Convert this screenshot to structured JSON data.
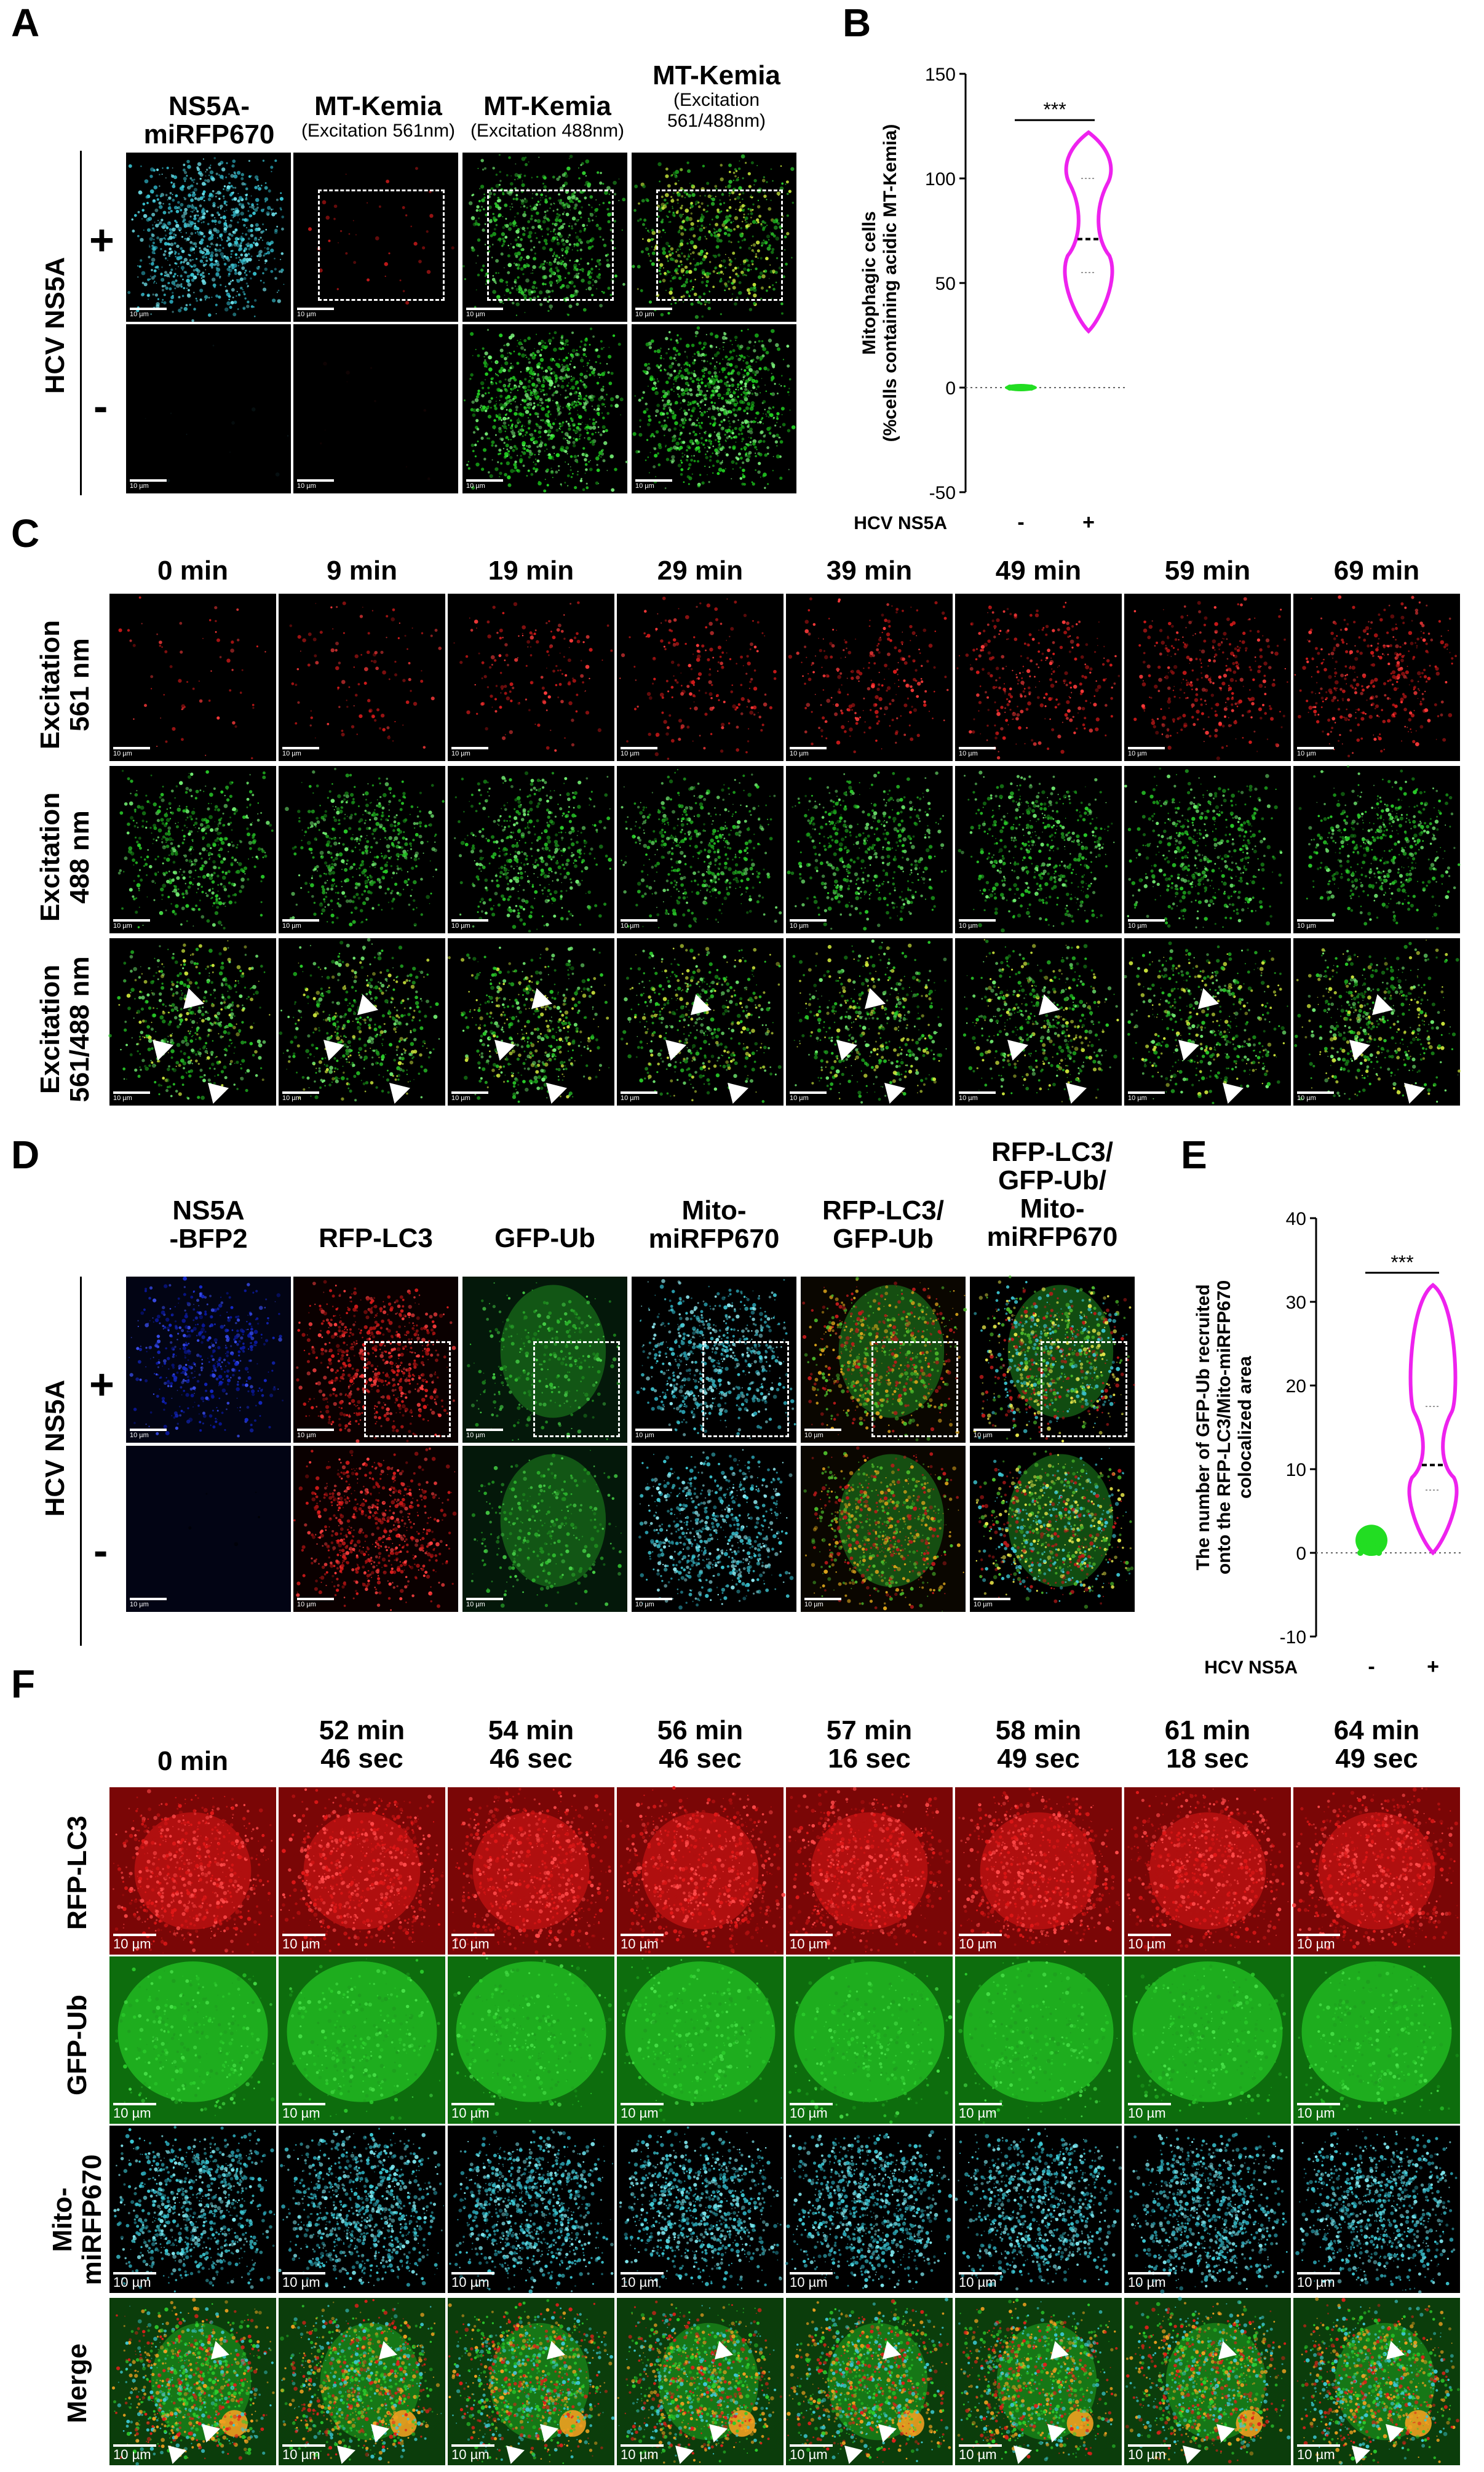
{
  "panels": {
    "A": "A",
    "B": "B",
    "C": "C",
    "D": "D",
    "E": "E",
    "F": "F"
  },
  "A": {
    "cols": [
      {
        "main": "NS5A-\nmiRFP670",
        "sub": ""
      },
      {
        "main": "MT-Kemia",
        "sub": "(Excitation 561nm)"
      },
      {
        "main": "MT-Kemia",
        "sub": "(Excitation 488nm)"
      },
      {
        "main": "MT-Kemia",
        "sub": "(Excitation\n561/488nm)"
      }
    ],
    "row_title": "HCV NS5A",
    "signs": [
      "+",
      "-"
    ],
    "scale": "10 µm"
  },
  "B": {
    "ylabel": "Mitophagic cells\n(%cells containing acidic MT-Kemia)",
    "xtitle": "HCV NS5A",
    "xcats": [
      "-",
      "+"
    ],
    "sig": "***"
  },
  "C": {
    "times": [
      "0 min",
      "9 min",
      "19 min",
      "29 min",
      "39 min",
      "49 min",
      "59 min",
      "69 min"
    ],
    "rows": [
      "Excitation\n561 nm",
      "Excitation\n488 nm",
      "Excitation\n561/488 nm"
    ],
    "scale": "10 µm"
  },
  "D": {
    "cols": [
      "NS5A\n-BFP2",
      "RFP-LC3",
      "GFP-Ub",
      "Mito-\nmiRFP670",
      "RFP-LC3/\nGFP-Ub",
      "RFP-LC3/\nGFP-Ub/\nMito-\nmiRFP670"
    ],
    "row_title": "HCV NS5A",
    "signs": [
      "+",
      "-"
    ],
    "scale": "10 µm"
  },
  "E": {
    "ylabel": "The number of GFP-Ub recruited\nonto the RFP-LC3/Mito-miRFP670\ncolocalized area",
    "xtitle": "HCV NS5A",
    "xcats": [
      "-",
      "+"
    ],
    "sig": "***"
  },
  "F": {
    "times": [
      "0 min",
      "52 min\n46 sec",
      "54 min\n46 sec",
      "56 min\n46 sec",
      "57 min\n16 sec",
      "58 min\n49 sec",
      "61 min\n18 sec",
      "64 min\n49 sec"
    ],
    "rows": [
      "RFP-LC3",
      "GFP-Ub",
      "Mito-\nmiRFP670",
      "Merge"
    ],
    "scale": "10 µm"
  },
  "chart_data": [
    {
      "type": "violin",
      "title": "",
      "ylabel": "Mitophagic cells\n(%cells containing acidic MT-Kemia)",
      "xlabel": "HCV NS5A",
      "categories": [
        "-",
        "+"
      ],
      "ylim": [
        -50,
        150
      ],
      "yticks": [
        -50,
        0,
        50,
        100,
        150
      ],
      "series": [
        {
          "values_range": [
            [
              0,
              0
            ],
            [
              27,
              122
            ]
          ],
          "median": [
            0,
            71
          ],
          "quartiles": [
            [
              0,
              0
            ],
            [
              55,
              100
            ]
          ]
        }
      ],
      "significance": "***",
      "colors": [
        "#22dd22",
        "#ee22ee"
      ]
    },
    {
      "type": "violin",
      "title": "",
      "ylabel": "The number of GFP-Ub recruited\nonto the RFP-LC3/Mito-miRFP670\ncolocalized area",
      "xlabel": "HCV NS5A",
      "categories": [
        "-",
        "+"
      ],
      "ylim": [
        -10,
        40
      ],
      "yticks": [
        -10,
        0,
        10,
        20,
        30,
        40
      ],
      "series": [
        {
          "values_range": [
            [
              0,
              3
            ],
            [
              0,
              32
            ]
          ],
          "median": [
            0.5,
            10.5
          ],
          "quartiles": [
            [
              0,
              1
            ],
            [
              7.5,
              17.5
            ]
          ]
        }
      ],
      "significance": "***",
      "colors": [
        "#22dd22",
        "#ee22ee"
      ]
    }
  ]
}
